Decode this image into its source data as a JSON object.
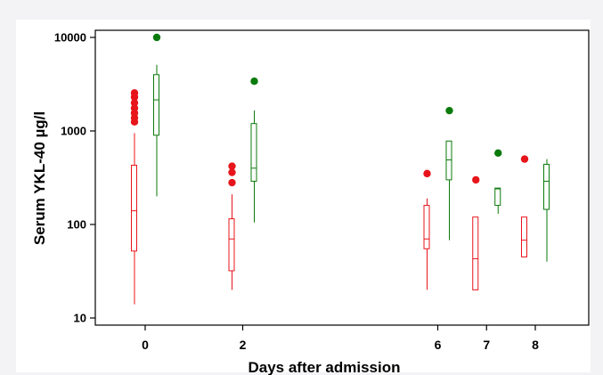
{
  "chart_data": {
    "type": "box",
    "xlabel": "Days after admission",
    "ylabel": "Serum YKL-40 µg/l",
    "yscale": "log",
    "ylim": [
      10,
      10000
    ],
    "yticks": [
      10,
      100,
      1000,
      10000
    ],
    "ytick_labels": [
      "10",
      "100",
      "1000",
      "10000"
    ],
    "categories": [
      0,
      2,
      6,
      7,
      8
    ],
    "category_labels": [
      "0",
      "2",
      "6",
      "7",
      "8"
    ],
    "grid": false,
    "series": [
      {
        "color": "#e8141b",
        "boxes": [
          {
            "day": 0,
            "whisker_low": 14,
            "q1": 52,
            "median": 140,
            "q3": 430,
            "whisker_high": 950,
            "outliers": [
              1250,
              1380,
              1550,
              1750,
              2000,
              2300,
              2550
            ]
          },
          {
            "day": 2,
            "whisker_low": 20,
            "q1": 32,
            "median": 70,
            "q3": 115,
            "whisker_high": 210,
            "outliers": [
              280,
              360,
              420
            ]
          },
          {
            "day": 6,
            "whisker_low": 20,
            "q1": 55,
            "median": 70,
            "q3": 160,
            "whisker_high": 190,
            "outliers": [
              350
            ]
          },
          {
            "day": 7,
            "whisker_low": 20,
            "q1": 20,
            "median": 43,
            "q3": 120,
            "whisker_high": 120,
            "outliers": [
              300
            ]
          },
          {
            "day": 8,
            "whisker_low": 45,
            "q1": 45,
            "median": 68,
            "q3": 120,
            "whisker_high": 120,
            "outliers": [
              500
            ]
          }
        ]
      },
      {
        "color": "#0a7a0a",
        "boxes": [
          {
            "day": 0,
            "whisker_low": 200,
            "q1": 900,
            "median": 2150,
            "q3": 4000,
            "whisker_high": 5100,
            "outliers": [
              10000
            ]
          },
          {
            "day": 2,
            "whisker_low": 105,
            "q1": 290,
            "median": 400,
            "q3": 1200,
            "whisker_high": 1650,
            "outliers": [
              3400
            ]
          },
          {
            "day": 6,
            "whisker_low": 68,
            "q1": 300,
            "median": 490,
            "q3": 780,
            "whisker_high": 780,
            "outliers": [
              1650
            ]
          },
          {
            "day": 7,
            "whisker_low": 130,
            "q1": 160,
            "median": 240,
            "q3": 245,
            "whisker_high": 245,
            "outliers": [
              580
            ]
          },
          {
            "day": 8,
            "whisker_low": 40,
            "q1": 145,
            "median": 290,
            "q3": 440,
            "whisker_high": 500,
            "outliers": []
          }
        ]
      }
    ]
  }
}
